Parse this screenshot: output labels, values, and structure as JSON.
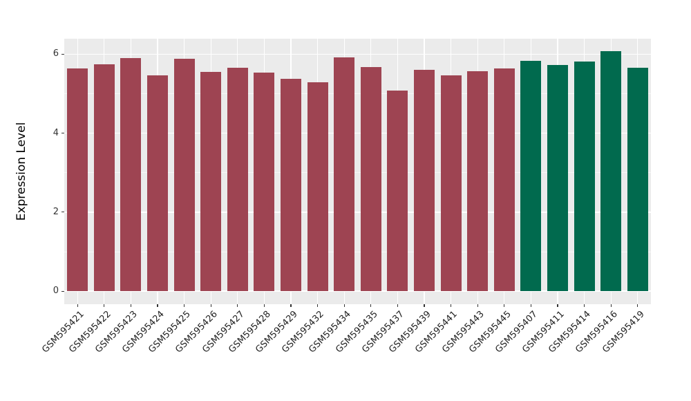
{
  "style": {
    "figure_background": "#FFFFFF",
    "panel_background": "#EBEBEB",
    "grid_major_color": "#FFFFFF",
    "grid_minor_color": "#F7F7F7",
    "tick_color": "#333333",
    "axis_text_color": "#222222",
    "maroon": "#9E4452",
    "green": "#016A4E"
  },
  "chart_data": {
    "type": "bar",
    "title": "",
    "xlabel": "",
    "ylabel": "Expression Level",
    "legend": "none",
    "grid": true,
    "x_tick_rotation": 45,
    "ylim": [
      0,
      6.39
    ],
    "yticks": [
      0,
      2,
      4,
      6
    ],
    "yticks_minor": [
      1,
      3,
      5
    ],
    "categories": [
      "GSM595421",
      "GSM595422",
      "GSM595423",
      "GSM595424",
      "GSM595425",
      "GSM595426",
      "GSM595427",
      "GSM595428",
      "GSM595429",
      "GSM595432",
      "GSM595434",
      "GSM595435",
      "GSM595437",
      "GSM595439",
      "GSM595441",
      "GSM595443",
      "GSM595445",
      "GSM595407",
      "GSM595411",
      "GSM595414",
      "GSM595416",
      "GSM595419"
    ],
    "values": [
      5.63,
      5.74,
      5.9,
      5.46,
      5.88,
      5.55,
      5.65,
      5.53,
      5.37,
      5.29,
      5.91,
      5.68,
      5.08,
      5.6,
      5.46,
      5.57,
      5.63,
      5.83,
      5.73,
      5.81,
      6.07,
      5.66
    ],
    "bar_colors": [
      "#9E4452",
      "#9E4452",
      "#9E4452",
      "#9E4452",
      "#9E4452",
      "#9E4452",
      "#9E4452",
      "#9E4452",
      "#9E4452",
      "#9E4452",
      "#9E4452",
      "#9E4452",
      "#9E4452",
      "#9E4452",
      "#9E4452",
      "#9E4452",
      "#9E4452",
      "#016A4E",
      "#016A4E",
      "#016A4E",
      "#016A4E",
      "#016A4E"
    ]
  }
}
